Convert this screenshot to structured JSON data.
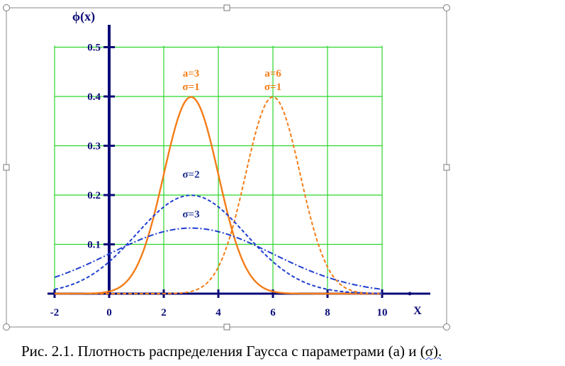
{
  "caption": {
    "text": "Рис. 2.1. Плотность распределения Гаусса с параметрами (а) и ",
    "tail": "(σ)."
  },
  "chart_data": {
    "type": "line",
    "title": "",
    "xlabel": "X",
    "ylabel": "ϕ(x)",
    "xlim": [
      -2,
      10
    ],
    "ylim": [
      0,
      0.5
    ],
    "grid_xlim": [
      -2,
      10
    ],
    "grid_ylim": [
      0,
      0.5
    ],
    "xticks": [
      -2,
      0,
      2,
      4,
      6,
      8,
      10
    ],
    "xtick_labels": [
      "-2",
      "0",
      "2",
      "4",
      "6",
      "8",
      "10"
    ],
    "yticks": [
      0.1,
      0.2,
      0.3,
      0.4,
      0.5
    ],
    "ytick_labels": [
      "0.1",
      "0.2",
      "0.3",
      "0.4",
      "0.5"
    ],
    "grid": true,
    "grid_color": "#2bd62b",
    "axis_color": "#0a0a78",
    "series": [
      {
        "a": 3,
        "sigma": 1,
        "color": "#f57c16",
        "style": "solid"
      },
      {
        "a": 6,
        "sigma": 1,
        "color": "#f57c16",
        "style": "dashed"
      },
      {
        "a": 3,
        "sigma": 2,
        "color": "#1f3fd0",
        "style": "dashed"
      },
      {
        "a": 3,
        "sigma": 3,
        "color": "#1f3fd0",
        "style": "dashdot"
      }
    ],
    "annotations": [
      {
        "lines": [
          "a=3",
          "σ=1"
        ],
        "color": "#f57c16",
        "x": 3,
        "y": 0.44
      },
      {
        "lines": [
          "a=6",
          "σ=1"
        ],
        "color": "#f57c16",
        "x": 6,
        "y": 0.44
      },
      {
        "lines": [
          "σ=2"
        ],
        "color": "#1a2f8f",
        "x": 3,
        "y": 0.235
      },
      {
        "lines": [
          "σ=3"
        ],
        "color": "#1a2f8f",
        "x": 3,
        "y": 0.155
      }
    ]
  }
}
